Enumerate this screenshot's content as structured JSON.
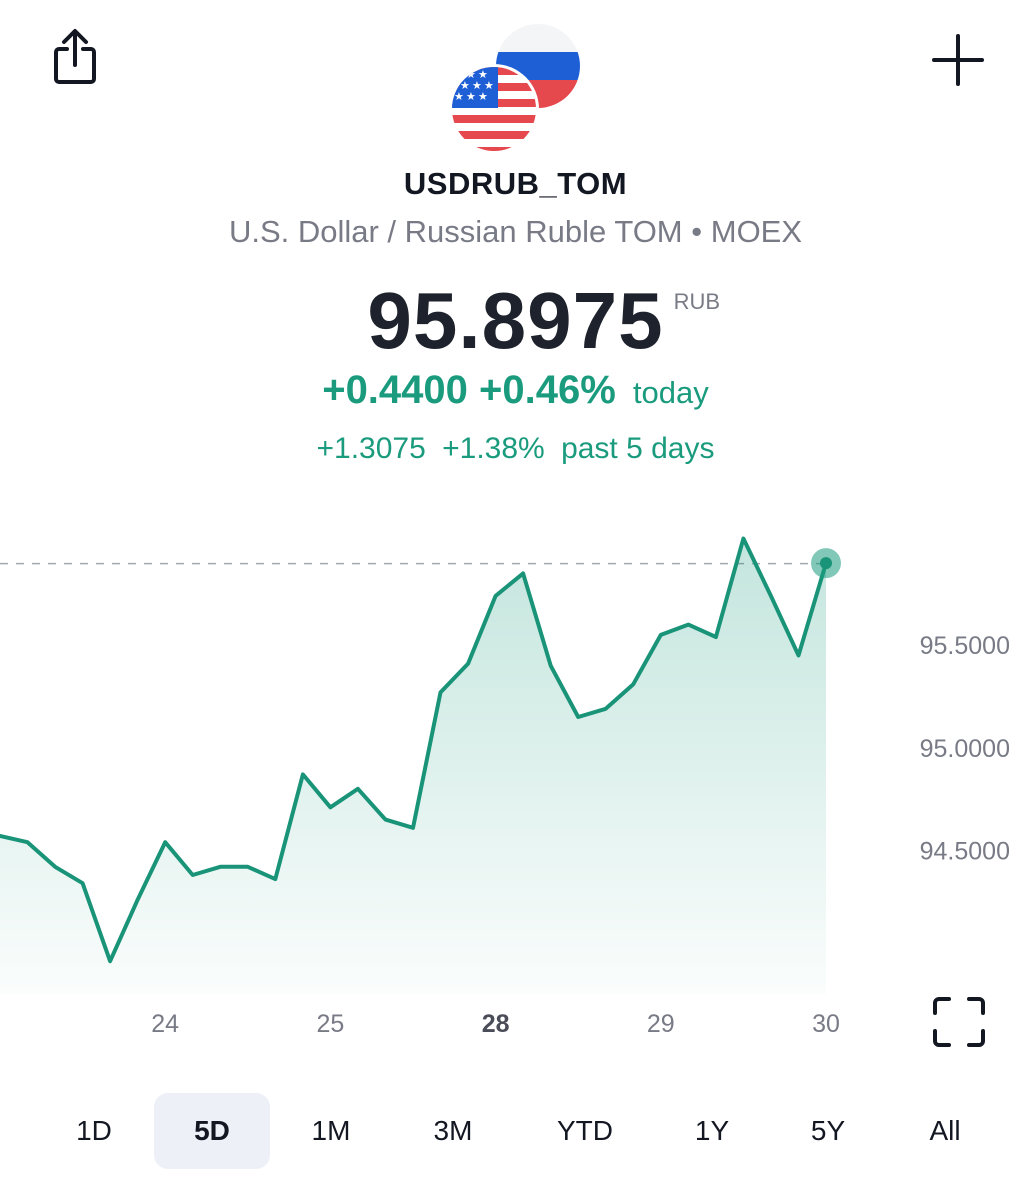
{
  "header": {
    "share_icon": "share-icon",
    "add_icon": "plus-icon"
  },
  "instrument": {
    "ticker": "USDRUB_TOM",
    "name": "U.S. Dollar / Russian Ruble TOM",
    "separator": "•",
    "exchange": "MOEX",
    "price": "95.8975",
    "currency": "RUB",
    "change_today": "+0.4400",
    "change_today_pct": "+0.46%",
    "change_today_label": "today",
    "change_period": "+1.3075",
    "change_period_pct": "+1.38%",
    "change_period_label": "past 5 days"
  },
  "colors": {
    "up": "#1a9b7d",
    "line": "#1a9478"
  },
  "chart_data": {
    "type": "area",
    "y_ticks": [
      "95.5000",
      "95.0000",
      "94.5000"
    ],
    "y_tick_values": [
      95.5,
      95.0,
      94.5
    ],
    "x_ticks": [
      {
        "label": "24",
        "index": 6,
        "bold": false
      },
      {
        "label": "25",
        "index": 12,
        "bold": false
      },
      {
        "label": "28",
        "index": 18,
        "bold": true
      },
      {
        "label": "29",
        "index": 24,
        "bold": false
      },
      {
        "label": "30",
        "index": 30,
        "bold": false
      }
    ],
    "values": [
      94.57,
      94.54,
      94.42,
      94.34,
      93.96,
      94.26,
      94.54,
      94.38,
      94.42,
      94.42,
      94.36,
      94.87,
      94.71,
      94.8,
      94.65,
      94.61,
      95.27,
      95.41,
      95.74,
      95.85,
      95.4,
      95.15,
      95.19,
      95.31,
      95.55,
      95.6,
      95.54,
      96.02,
      95.74,
      95.45,
      95.9
    ],
    "last_value": 95.8975,
    "ylim": [
      93.8,
      96.11
    ]
  },
  "ranges": {
    "items": [
      "1D",
      "5D",
      "1M",
      "3M",
      "YTD",
      "1Y",
      "5Y",
      "All"
    ],
    "active": "5D"
  }
}
